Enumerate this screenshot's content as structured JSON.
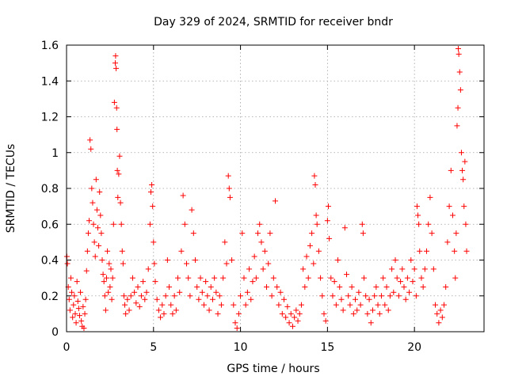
{
  "chart_data": {
    "type": "scatter",
    "title": "Day 329 of 2024, SRMTID for receiver bndr",
    "xlabel": "GPS time / hours",
    "ylabel": "SRMTID / TECUs",
    "xlim": [
      0,
      24
    ],
    "ylim": [
      0,
      1.6
    ],
    "grid": true,
    "xticks": [
      0,
      5,
      10,
      15,
      20
    ],
    "xtick_labels": [
      "0",
      "5",
      "10",
      "15",
      "20"
    ],
    "yticks": [
      0,
      0.2,
      0.4,
      0.6,
      0.8,
      1.0,
      1.2,
      1.4,
      1.6
    ],
    "ytick_labels": [
      "0",
      "0.2",
      "0.4",
      "0.6",
      "0.8",
      "1",
      "1.2",
      "1.4",
      "1.6"
    ],
    "marker": "+",
    "series": [
      {
        "name": "SRMTID",
        "color": "#ff0000",
        "points": [
          [
            0.02,
            0.42
          ],
          [
            0.05,
            0.38
          ],
          [
            0.1,
            0.25
          ],
          [
            0.15,
            0.18
          ],
          [
            0.2,
            0.12
          ],
          [
            0.25,
            0.3
          ],
          [
            0.3,
            0.22
          ],
          [
            0.35,
            0.08
          ],
          [
            0.4,
            0.15
          ],
          [
            0.45,
            0.2
          ],
          [
            0.5,
            0.1
          ],
          [
            0.55,
            0.05
          ],
          [
            0.6,
            0.28
          ],
          [
            0.65,
            0.17
          ],
          [
            0.7,
            0.13
          ],
          [
            0.75,
            0.09
          ],
          [
            0.8,
            0.22
          ],
          [
            0.85,
            0.06
          ],
          [
            0.9,
            0.03
          ],
          [
            0.95,
            0.14
          ],
          [
            1.0,
            0.02
          ],
          [
            1.05,
            0.1
          ],
          [
            1.1,
            0.18
          ],
          [
            1.15,
            0.34
          ],
          [
            1.2,
            0.45
          ],
          [
            1.25,
            0.55
          ],
          [
            1.3,
            0.62
          ],
          [
            1.35,
            1.07
          ],
          [
            1.4,
            1.02
          ],
          [
            1.45,
            0.8
          ],
          [
            1.5,
            0.72
          ],
          [
            1.55,
            0.6
          ],
          [
            1.6,
            0.5
          ],
          [
            1.65,
            0.42
          ],
          [
            1.7,
            0.85
          ],
          [
            1.75,
            0.68
          ],
          [
            1.8,
            0.58
          ],
          [
            1.85,
            0.48
          ],
          [
            1.9,
            0.78
          ],
          [
            1.95,
            0.65
          ],
          [
            2.0,
            0.55
          ],
          [
            2.05,
            0.4
          ],
          [
            2.1,
            0.32
          ],
          [
            2.15,
            0.28
          ],
          [
            2.2,
            0.2
          ],
          [
            2.25,
            0.12
          ],
          [
            2.3,
            0.3
          ],
          [
            2.35,
            0.45
          ],
          [
            2.4,
            0.22
          ],
          [
            2.45,
            0.38
          ],
          [
            2.5,
            0.25
          ],
          [
            2.55,
            0.35
          ],
          [
            2.6,
            0.18
          ],
          [
            2.65,
            0.3
          ],
          [
            2.7,
            0.6
          ],
          [
            2.75,
            1.28
          ],
          [
            2.8,
            1.5
          ],
          [
            2.82,
            1.54
          ],
          [
            2.85,
            1.47
          ],
          [
            2.88,
            1.25
          ],
          [
            2.9,
            1.13
          ],
          [
            2.92,
            0.9
          ],
          [
            2.95,
            0.75
          ],
          [
            3.0,
            0.88
          ],
          [
            3.05,
            0.98
          ],
          [
            3.1,
            0.72
          ],
          [
            3.15,
            0.6
          ],
          [
            3.2,
            0.45
          ],
          [
            3.25,
            0.38
          ],
          [
            3.3,
            0.2
          ],
          [
            3.35,
            0.15
          ],
          [
            3.4,
            0.1
          ],
          [
            3.5,
            0.18
          ],
          [
            3.6,
            0.12
          ],
          [
            3.7,
            0.2
          ],
          [
            3.8,
            0.3
          ],
          [
            3.9,
            0.22
          ],
          [
            4.0,
            0.16
          ],
          [
            4.1,
            0.25
          ],
          [
            4.2,
            0.14
          ],
          [
            4.3,
            0.2
          ],
          [
            4.4,
            0.28
          ],
          [
            4.5,
            0.18
          ],
          [
            4.6,
            0.22
          ],
          [
            4.7,
            0.35
          ],
          [
            4.8,
            0.6
          ],
          [
            4.85,
            0.78
          ],
          [
            4.9,
            0.82
          ],
          [
            4.95,
            0.7
          ],
          [
            5.0,
            0.5
          ],
          [
            5.05,
            0.38
          ],
          [
            5.1,
            0.28
          ],
          [
            5.2,
            0.18
          ],
          [
            5.3,
            0.12
          ],
          [
            5.4,
            0.08
          ],
          [
            5.5,
            0.15
          ],
          [
            5.6,
            0.1
          ],
          [
            5.7,
            0.2
          ],
          [
            5.8,
            0.4
          ],
          [
            5.9,
            0.25
          ],
          [
            6.0,
            0.15
          ],
          [
            6.1,
            0.1
          ],
          [
            6.2,
            0.2
          ],
          [
            6.3,
            0.12
          ],
          [
            6.4,
            0.3
          ],
          [
            6.5,
            0.22
          ],
          [
            6.6,
            0.45
          ],
          [
            6.7,
            0.76
          ],
          [
            6.8,
            0.6
          ],
          [
            6.9,
            0.38
          ],
          [
            7.0,
            0.3
          ],
          [
            7.1,
            0.2
          ],
          [
            7.2,
            0.68
          ],
          [
            7.3,
            0.55
          ],
          [
            7.4,
            0.4
          ],
          [
            7.5,
            0.25
          ],
          [
            7.6,
            0.18
          ],
          [
            7.7,
            0.3
          ],
          [
            7.8,
            0.22
          ],
          [
            7.9,
            0.15
          ],
          [
            8.0,
            0.28
          ],
          [
            8.1,
            0.2
          ],
          [
            8.2,
            0.12
          ],
          [
            8.3,
            0.25
          ],
          [
            8.4,
            0.18
          ],
          [
            8.5,
            0.3
          ],
          [
            8.6,
            0.22
          ],
          [
            8.7,
            0.1
          ],
          [
            8.8,
            0.2
          ],
          [
            8.9,
            0.15
          ],
          [
            9.0,
            0.3
          ],
          [
            9.1,
            0.5
          ],
          [
            9.2,
            0.38
          ],
          [
            9.3,
            0.87
          ],
          [
            9.35,
            0.8
          ],
          [
            9.4,
            0.75
          ],
          [
            9.5,
            0.4
          ],
          [
            9.6,
            0.15
          ],
          [
            9.7,
            0.05
          ],
          [
            9.8,
            0.02
          ],
          [
            9.9,
            0.1
          ],
          [
            10.0,
            0.2
          ],
          [
            10.1,
            0.55
          ],
          [
            10.2,
            0.3
          ],
          [
            10.3,
            0.15
          ],
          [
            10.4,
            0.22
          ],
          [
            10.5,
            0.35
          ],
          [
            10.6,
            0.18
          ],
          [
            10.7,
            0.28
          ],
          [
            10.8,
            0.42
          ],
          [
            10.9,
            0.3
          ],
          [
            11.0,
            0.55
          ],
          [
            11.1,
            0.6
          ],
          [
            11.2,
            0.5
          ],
          [
            11.3,
            0.35
          ],
          [
            11.4,
            0.45
          ],
          [
            11.5,
            0.25
          ],
          [
            11.6,
            0.38
          ],
          [
            11.7,
            0.55
          ],
          [
            11.8,
            0.2
          ],
          [
            11.9,
            0.3
          ],
          [
            12.0,
            0.73
          ],
          [
            12.1,
            0.25
          ],
          [
            12.2,
            0.15
          ],
          [
            12.3,
            0.22
          ],
          [
            12.4,
            0.1
          ],
          [
            12.5,
            0.18
          ],
          [
            12.6,
            0.08
          ],
          [
            12.7,
            0.14
          ],
          [
            12.8,
            0.05
          ],
          [
            12.9,
            0.1
          ],
          [
            13.0,
            0.03
          ],
          [
            13.1,
            0.08
          ],
          [
            13.2,
            0.12
          ],
          [
            13.3,
            0.06
          ],
          [
            13.4,
            0.1
          ],
          [
            13.5,
            0.15
          ],
          [
            13.6,
            0.35
          ],
          [
            13.7,
            0.25
          ],
          [
            13.8,
            0.42
          ],
          [
            13.9,
            0.3
          ],
          [
            14.0,
            0.48
          ],
          [
            14.1,
            0.55
          ],
          [
            14.2,
            0.38
          ],
          [
            14.25,
            0.87
          ],
          [
            14.3,
            0.82
          ],
          [
            14.35,
            0.65
          ],
          [
            14.4,
            0.6
          ],
          [
            14.5,
            0.45
          ],
          [
            14.6,
            0.3
          ],
          [
            14.7,
            0.2
          ],
          [
            14.8,
            0.1
          ],
          [
            14.9,
            0.06
          ],
          [
            15.0,
            0.62
          ],
          [
            15.05,
            0.7
          ],
          [
            15.1,
            0.52
          ],
          [
            15.2,
            0.3
          ],
          [
            15.3,
            0.2
          ],
          [
            15.4,
            0.28
          ],
          [
            15.5,
            0.15
          ],
          [
            15.6,
            0.4
          ],
          [
            15.7,
            0.25
          ],
          [
            15.8,
            0.18
          ],
          [
            15.9,
            0.12
          ],
          [
            16.0,
            0.58
          ],
          [
            16.1,
            0.32
          ],
          [
            16.2,
            0.2
          ],
          [
            16.3,
            0.15
          ],
          [
            16.4,
            0.25
          ],
          [
            16.5,
            0.1
          ],
          [
            16.6,
            0.18
          ],
          [
            16.7,
            0.12
          ],
          [
            16.8,
            0.22
          ],
          [
            16.9,
            0.15
          ],
          [
            17.0,
            0.6
          ],
          [
            17.05,
            0.55
          ],
          [
            17.1,
            0.3
          ],
          [
            17.2,
            0.2
          ],
          [
            17.3,
            0.1
          ],
          [
            17.4,
            0.18
          ],
          [
            17.5,
            0.05
          ],
          [
            17.6,
            0.12
          ],
          [
            17.7,
            0.2
          ],
          [
            17.8,
            0.25
          ],
          [
            17.9,
            0.15
          ],
          [
            18.0,
            0.1
          ],
          [
            18.1,
            0.2
          ],
          [
            18.2,
            0.3
          ],
          [
            18.3,
            0.15
          ],
          [
            18.4,
            0.25
          ],
          [
            18.5,
            0.12
          ],
          [
            18.6,
            0.2
          ],
          [
            18.7,
            0.35
          ],
          [
            18.8,
            0.22
          ],
          [
            18.9,
            0.4
          ],
          [
            19.0,
            0.3
          ],
          [
            19.1,
            0.2
          ],
          [
            19.2,
            0.28
          ],
          [
            19.3,
            0.35
          ],
          [
            19.4,
            0.25
          ],
          [
            19.5,
            0.18
          ],
          [
            19.6,
            0.3
          ],
          [
            19.7,
            0.22
          ],
          [
            19.8,
            0.4
          ],
          [
            19.9,
            0.28
          ],
          [
            20.0,
            0.35
          ],
          [
            20.1,
            0.2
          ],
          [
            20.15,
            0.7
          ],
          [
            20.2,
            0.65
          ],
          [
            20.25,
            0.6
          ],
          [
            20.3,
            0.45
          ],
          [
            20.4,
            0.3
          ],
          [
            20.5,
            0.25
          ],
          [
            20.6,
            0.35
          ],
          [
            20.7,
            0.45
          ],
          [
            20.8,
            0.6
          ],
          [
            20.9,
            0.75
          ],
          [
            21.0,
            0.55
          ],
          [
            21.1,
            0.35
          ],
          [
            21.2,
            0.15
          ],
          [
            21.3,
            0.1
          ],
          [
            21.4,
            0.05
          ],
          [
            21.5,
            0.12
          ],
          [
            21.6,
            0.08
          ],
          [
            21.7,
            0.15
          ],
          [
            21.8,
            0.25
          ],
          [
            21.9,
            0.5
          ],
          [
            22.0,
            0.7
          ],
          [
            22.1,
            0.9
          ],
          [
            22.2,
            0.65
          ],
          [
            22.3,
            0.45
          ],
          [
            22.35,
            0.3
          ],
          [
            22.4,
            0.55
          ],
          [
            22.45,
            1.15
          ],
          [
            22.5,
            1.25
          ],
          [
            22.52,
            1.58
          ],
          [
            22.55,
            1.55
          ],
          [
            22.6,
            1.45
          ],
          [
            22.65,
            1.35
          ],
          [
            22.7,
            1.0
          ],
          [
            22.75,
            0.9
          ],
          [
            22.8,
            0.85
          ],
          [
            22.85,
            0.7
          ],
          [
            22.9,
            0.95
          ],
          [
            22.95,
            0.6
          ],
          [
            23.0,
            0.45
          ]
        ]
      }
    ]
  }
}
